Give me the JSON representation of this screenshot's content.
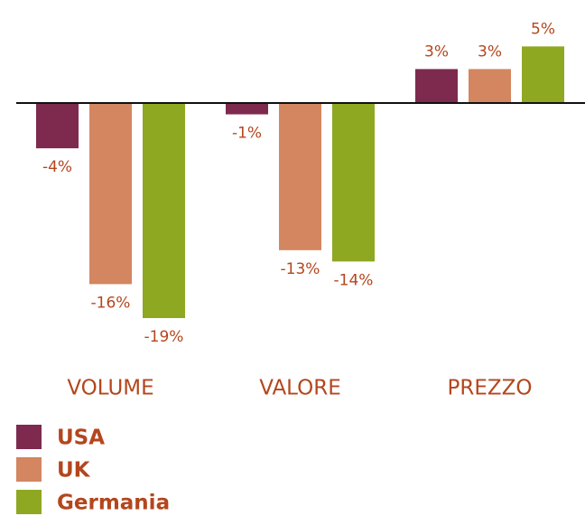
{
  "chart_data": {
    "type": "bar",
    "categories": [
      "VOLUME",
      "VALORE",
      "PREZZO"
    ],
    "series": [
      {
        "name": "USA",
        "color": "#7d2a4e",
        "values": [
          -4,
          -1,
          3
        ],
        "value_labels": [
          "-4%",
          "-1%",
          "3%"
        ]
      },
      {
        "name": "UK",
        "color": "#d38660",
        "values": [
          -16,
          -13,
          3
        ],
        "value_labels": [
          "-16%",
          "-13%",
          "3%"
        ]
      },
      {
        "name": "Germania",
        "color": "#8ea822",
        "values": [
          -19,
          -14,
          5
        ],
        "value_labels": [
          "-19%",
          "-14%",
          "5%"
        ]
      }
    ],
    "legend": "bottom-left"
  }
}
